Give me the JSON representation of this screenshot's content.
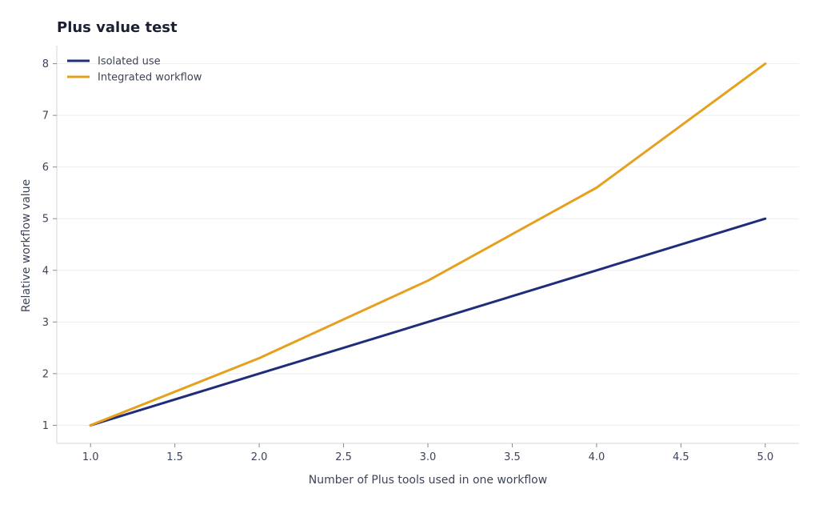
{
  "chart_data": {
    "type": "line",
    "title": "Plus value test",
    "xlabel": "Number of Plus tools used in one workflow",
    "ylabel": "Relative workflow value",
    "xlim": [
      0.8,
      5.2
    ],
    "ylim": [
      0.65,
      8.35
    ],
    "xticks": [
      "1.0",
      "1.5",
      "2.0",
      "2.5",
      "3.0",
      "3.5",
      "4.0",
      "4.5",
      "5.0"
    ],
    "yticks": [
      "1",
      "2",
      "3",
      "4",
      "5",
      "6",
      "7",
      "8"
    ],
    "grid": "horizontal",
    "legend_position": "top-left",
    "x": [
      1,
      2,
      3,
      4,
      5
    ],
    "series": [
      {
        "name": "Isolated use",
        "color": "#1f2d7a",
        "values": [
          1,
          2,
          3,
          4,
          5
        ]
      },
      {
        "name": "Integrated workflow",
        "color": "#e5a11e",
        "values": [
          1,
          2.3,
          3.8,
          5.6,
          8
        ]
      }
    ]
  }
}
